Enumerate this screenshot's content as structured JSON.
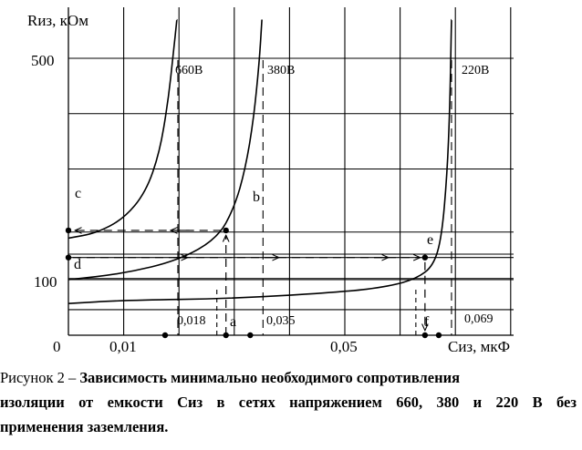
{
  "chart_data": {
    "type": "line",
    "y_axis_label": "Rиз, кОм",
    "x_axis_label": "Cиз, мкФ",
    "x_ticks": [
      "0",
      "0,01",
      "0,05"
    ],
    "y_ticks": [
      "500",
      "100"
    ],
    "series": [
      {
        "name": "660В",
        "asymptote_x": 0.0198,
        "points": [
          [
            0.0,
            175
          ],
          [
            0.005,
            184
          ],
          [
            0.01,
            210
          ],
          [
            0.014,
            258
          ],
          [
            0.0165,
            330
          ],
          [
            0.018,
            420
          ],
          [
            0.019,
            510
          ],
          [
            0.0196,
            570
          ]
        ]
      },
      {
        "name": "380В",
        "asymptote_x": 0.0352,
        "points": [
          [
            0.0,
            100
          ],
          [
            0.01,
            111
          ],
          [
            0.02,
            135
          ],
          [
            0.027,
            175
          ],
          [
            0.03,
            230
          ],
          [
            0.032,
            300
          ],
          [
            0.0335,
            390
          ],
          [
            0.0345,
            490
          ],
          [
            0.035,
            570
          ]
        ]
      },
      {
        "name": "220В",
        "asymptote_x": 0.0693,
        "points": [
          [
            0.0,
            57
          ],
          [
            0.01,
            63
          ],
          [
            0.03,
            66
          ],
          [
            0.05,
            78
          ],
          [
            0.058,
            88
          ],
          [
            0.063,
            102
          ],
          [
            0.066,
            125
          ],
          [
            0.0675,
            175
          ],
          [
            0.0685,
            290
          ],
          [
            0.069,
            410
          ],
          [
            0.0693,
            570
          ]
        ]
      }
    ],
    "annotations": [
      {
        "label": "c",
        "x": 0.0,
        "y": 189
      },
      {
        "label": "b",
        "x": 0.0285,
        "y": 189
      },
      {
        "label": "d",
        "x": 0.0,
        "y": 140
      },
      {
        "label": "e",
        "x": 0.0645,
        "y": 140
      },
      {
        "label": "a",
        "x": 0.0285,
        "y": 0
      },
      {
        "label": "f",
        "x": 0.0645,
        "y": 0
      }
    ],
    "value_labels": [
      "0,018",
      "0,035",
      "0,069"
    ],
    "xlim": [
      0.0,
      0.08
    ],
    "ylim": [
      0,
      578
    ],
    "grid": true
  },
  "caption": {
    "lead": "Рисунок 2 – ",
    "line1": "Зависимость   минимально   необходимого    сопротивления",
    "line2": " изоляции от емкости Cиз в сетях напряжением 660, 380 и 220 В без",
    "line3": "применения заземления."
  }
}
